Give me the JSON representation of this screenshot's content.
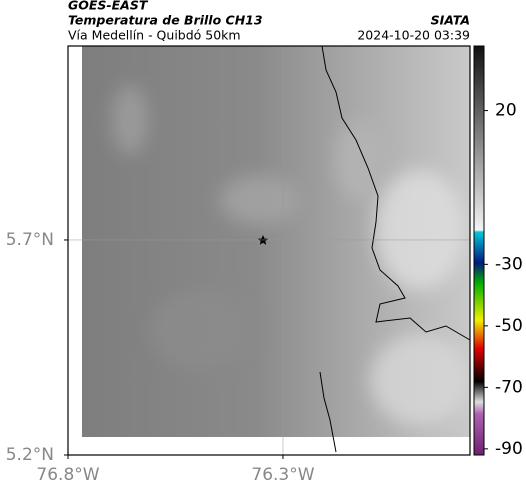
{
  "header": {
    "source": "GOES-EAST",
    "title": "Temperatura de Brillo CH13",
    "subtitle": "Vía Medellín - Quibdó 50km",
    "agency": "SIATA",
    "timestamp": "2024-10-20 03:39"
  },
  "map": {
    "xlim": [
      -76.8,
      -75.865
    ],
    "ylim": [
      5.2,
      6.151
    ],
    "xticks": [
      {
        "value": -76.8,
        "label": "76.8°W"
      },
      {
        "value": -76.3,
        "label": "76.3°W"
      }
    ],
    "yticks": [
      {
        "value": 5.7,
        "label": "5.7°N"
      },
      {
        "value": 5.2,
        "label": "5.2°N"
      }
    ],
    "grid": true,
    "colorbar": {
      "lim": [
        41,
        -92
      ],
      "ticks": [
        20,
        -30,
        -50,
        -70,
        -90
      ]
    }
  }
}
